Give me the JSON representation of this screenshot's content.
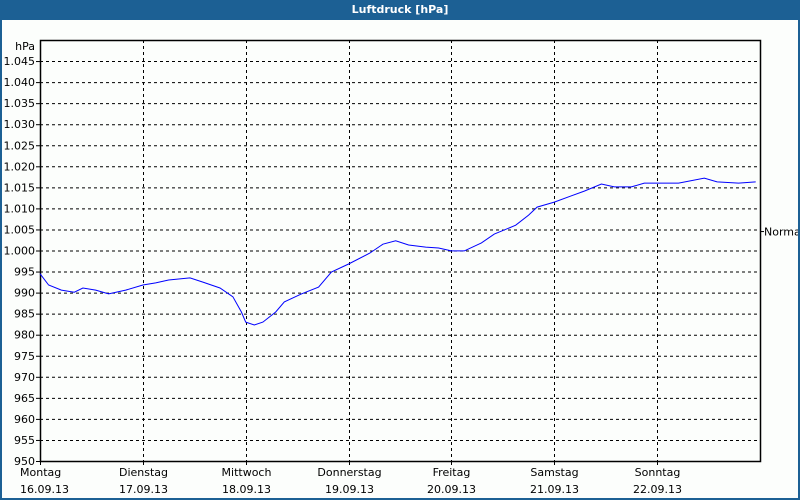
{
  "window": {
    "title": "Luftdruck [hPa]"
  },
  "colors": {
    "titlebar": "#1c6094",
    "series": "#0000ff",
    "grid": "#000000"
  },
  "chart_data": {
    "type": "line",
    "title": "Luftdruck [hPa]",
    "ylabel": "hPa",
    "ylim": [
      950,
      1050
    ],
    "yticks": [
      950,
      955,
      960,
      965,
      970,
      975,
      980,
      985,
      990,
      995,
      1000,
      1005,
      1010,
      1015,
      1020,
      1025,
      1030,
      1035,
      1040,
      1045
    ],
    "ytick_labels": [
      "950",
      "955",
      "960",
      "965",
      "970",
      "975",
      "980",
      "985",
      "990",
      "995",
      "1.000",
      "1.005",
      "1.010",
      "1.015",
      "1.020",
      "1.025",
      "1.030",
      "1.035",
      "1.040",
      "1.045"
    ],
    "xlim": [
      "2013-09-16T00:00",
      "2013-09-23T00:00"
    ],
    "xticks": [
      {
        "day": "Montag",
        "date": "16.09.13",
        "t": "2013-09-16T00:00"
      },
      {
        "day": "Dienstag",
        "date": "17.09.13",
        "t": "2013-09-17T00:00"
      },
      {
        "day": "Mittwoch",
        "date": "18.09.13",
        "t": "2013-09-18T00:00"
      },
      {
        "day": "Donnerstag",
        "date": "19.09.13",
        "t": "2013-09-19T00:00"
      },
      {
        "day": "Freitag",
        "date": "20.09.13",
        "t": "2013-09-20T00:00"
      },
      {
        "day": "Samstag",
        "date": "21.09.13",
        "t": "2013-09-21T00:00"
      },
      {
        "day": "Sonntag",
        "date": "22.09.13",
        "t": "2013-09-22T00:00"
      }
    ],
    "grid": true,
    "reference": {
      "label": "Normal",
      "value": 1004.5,
      "axis": "right"
    },
    "series": [
      {
        "x": [
          "2013-09-16T00:00",
          "2013-09-16T02:00",
          "2013-09-16T05:00",
          "2013-09-16T08:00",
          "2013-09-16T10:00",
          "2013-09-16T13:00",
          "2013-09-16T16:00",
          "2013-09-16T20:00",
          "2013-09-17T00:00",
          "2013-09-17T03:00",
          "2013-09-17T06:00",
          "2013-09-17T11:00",
          "2013-09-17T14:00",
          "2013-09-17T18:00",
          "2013-09-17T21:00",
          "2013-09-17T23:00",
          "2013-09-18T00:00",
          "2013-09-18T02:00",
          "2013-09-18T04:00",
          "2013-09-18T07:00",
          "2013-09-18T09:00",
          "2013-09-18T13:00",
          "2013-09-18T17:00",
          "2013-09-18T20:00",
          "2013-09-19T00:00",
          "2013-09-19T05:00",
          "2013-09-19T08:00",
          "2013-09-19T11:00",
          "2013-09-19T14:00",
          "2013-09-19T18:00",
          "2013-09-19T21:00",
          "2013-09-20T00:00",
          "2013-09-20T03:00",
          "2013-09-20T07:00",
          "2013-09-20T10:00",
          "2013-09-20T15:00",
          "2013-09-20T18:00",
          "2013-09-20T20:00",
          "2013-09-21T00:00",
          "2013-09-21T04:00",
          "2013-09-21T07:00",
          "2013-09-21T11:00",
          "2013-09-21T14:00",
          "2013-09-21T18:00",
          "2013-09-21T21:00",
          "2013-09-22T00:00",
          "2013-09-22T05:00",
          "2013-09-22T11:00",
          "2013-09-22T14:00",
          "2013-09-22T19:00",
          "2013-09-22T23:00"
        ],
        "y": [
          994.5,
          991.8,
          990.6,
          990.1,
          991.1,
          990.6,
          989.7,
          990.6,
          991.8,
          992.3,
          993.0,
          993.5,
          992.5,
          991.1,
          989.0,
          985.4,
          983.0,
          982.3,
          983.0,
          985.4,
          987.8,
          989.7,
          991.3,
          994.9,
          996.8,
          999.4,
          1001.5,
          1002.3,
          1001.3,
          1000.8,
          1000.6,
          999.9,
          999.9,
          1001.8,
          1003.9,
          1006.0,
          1008.4,
          1010.3,
          1011.5,
          1013.0,
          1014.1,
          1015.8,
          1015.1,
          1015.1,
          1016.0,
          1016.0,
          1016.0,
          1017.2,
          1016.3,
          1016.0,
          1016.3
        ]
      }
    ]
  }
}
